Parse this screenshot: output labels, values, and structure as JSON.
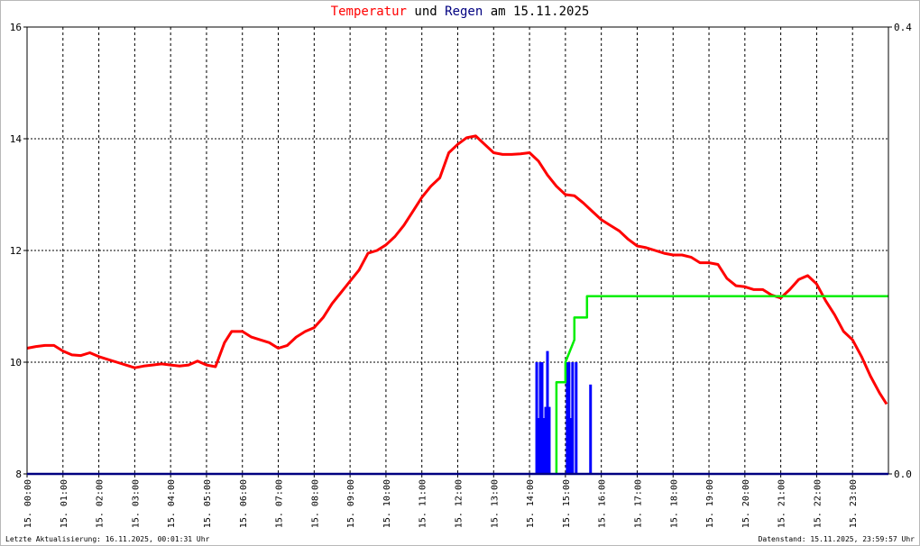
{
  "title": {
    "part1": "Temperatur",
    "part2": "und",
    "part3": "Regen",
    "part4": "am 15.11.2025"
  },
  "footer": {
    "left": "Letzte Aktualisierung: 16.11.2025, 00:01:31 Uhr",
    "right": "Datenstand: 15.11.2025, 23:59:57 Uhr"
  },
  "colors": {
    "temperature": "#ff0000",
    "rain_sum": "#00ee00",
    "rain_rate": "#0000ff",
    "baseline": "#000080"
  },
  "chart_data": {
    "type": "line",
    "grid": true,
    "xlim": [
      0,
      24
    ],
    "ylim_left": [
      8,
      16
    ],
    "ylim_right": [
      0.0,
      0.4
    ],
    "y_left_ticks": [
      "8",
      "10",
      "12",
      "14",
      "16"
    ],
    "y_right_ticks": [
      "0.0",
      "0.4"
    ],
    "x_ticks": [
      "15. 00:00",
      "15. 01:00",
      "15. 02:00",
      "15. 03:00",
      "15. 04:00",
      "15. 05:00",
      "15. 06:00",
      "15. 07:00",
      "15. 08:00",
      "15. 09:00",
      "15. 10:00",
      "15. 11:00",
      "15. 12:00",
      "15. 13:00",
      "15. 14:00",
      "15. 15:00",
      "15. 16:00",
      "15. 17:00",
      "15. 18:00",
      "15. 19:00",
      "15. 20:00",
      "15. 21:00",
      "15. 22:00",
      "15. 23:00"
    ],
    "series": [
      {
        "key": "temperature",
        "axis": "left",
        "x": [
          0.0,
          0.25,
          0.5,
          0.75,
          1.0,
          1.25,
          1.5,
          1.75,
          2.0,
          2.25,
          2.5,
          2.75,
          3.0,
          3.25,
          3.5,
          3.75,
          4.0,
          4.25,
          4.5,
          4.75,
          5.0,
          5.25,
          5.5,
          5.7,
          6.0,
          6.25,
          6.5,
          6.75,
          7.0,
          7.25,
          7.5,
          7.75,
          8.0,
          8.25,
          8.5,
          8.75,
          9.0,
          9.25,
          9.5,
          9.75,
          10.0,
          10.25,
          10.5,
          10.75,
          11.0,
          11.25,
          11.5,
          11.75,
          12.0,
          12.25,
          12.5,
          12.75,
          13.0,
          13.25,
          13.5,
          13.75,
          14.0,
          14.25,
          14.5,
          14.75,
          15.0,
          15.25,
          15.5,
          15.75,
          16.0,
          16.25,
          16.5,
          16.75,
          17.0,
          17.25,
          17.5,
          17.75,
          18.0,
          18.25,
          18.5,
          18.75,
          19.0,
          19.25,
          19.5,
          19.75,
          20.0,
          20.25,
          20.5,
          20.75,
          21.0,
          21.25,
          21.5,
          21.75,
          22.0,
          22.25,
          22.5,
          22.75,
          23.0,
          23.25,
          23.5,
          23.75,
          23.95
        ],
        "y": [
          10.25,
          10.28,
          10.3,
          10.3,
          10.2,
          10.13,
          10.12,
          10.17,
          10.1,
          10.05,
          10.0,
          9.95,
          9.9,
          9.93,
          9.95,
          9.97,
          9.95,
          9.93,
          9.95,
          10.02,
          9.95,
          9.92,
          10.35,
          10.55,
          10.55,
          10.45,
          10.4,
          10.35,
          10.25,
          10.3,
          10.45,
          10.55,
          10.62,
          10.8,
          11.05,
          11.25,
          11.45,
          11.65,
          11.95,
          12.0,
          12.1,
          12.25,
          12.45,
          12.7,
          12.95,
          13.15,
          13.3,
          13.75,
          13.9,
          14.02,
          14.05,
          13.9,
          13.75,
          13.72,
          13.72,
          13.73,
          13.75,
          13.6,
          13.35,
          13.15,
          13.0,
          12.98,
          12.85,
          12.7,
          12.55,
          12.45,
          12.35,
          12.2,
          12.08,
          12.05,
          12.0,
          11.95,
          11.92,
          11.92,
          11.88,
          11.78,
          11.78,
          11.75,
          11.5,
          11.37,
          11.35,
          11.3,
          11.3,
          11.2,
          11.15,
          11.3,
          11.48,
          11.55,
          11.4,
          11.1,
          10.85,
          10.55,
          10.4,
          10.1,
          9.75,
          9.45,
          9.25
        ]
      },
      {
        "key": "rain_sum",
        "axis": "right",
        "x": [
          14.75,
          14.75,
          15.0,
          15.0,
          15.25,
          15.25,
          15.6,
          15.6,
          24.0
        ],
        "y": [
          0.0,
          0.082,
          0.082,
          0.1,
          0.12,
          0.14,
          0.14,
          0.159,
          0.159
        ]
      },
      {
        "key": "rain_rate",
        "axis": "left",
        "type": "bar",
        "x": [
          14.2,
          14.25,
          14.3,
          14.35,
          14.4,
          14.45,
          14.5,
          14.55,
          15.05,
          15.1,
          15.15,
          15.2,
          15.3,
          15.7
        ],
        "y": [
          10.0,
          9.0,
          10.0,
          10.0,
          9.0,
          9.2,
          10.2,
          9.2,
          10.0,
          10.0,
          9.0,
          10.0,
          10.0,
          9.6
        ]
      }
    ]
  }
}
